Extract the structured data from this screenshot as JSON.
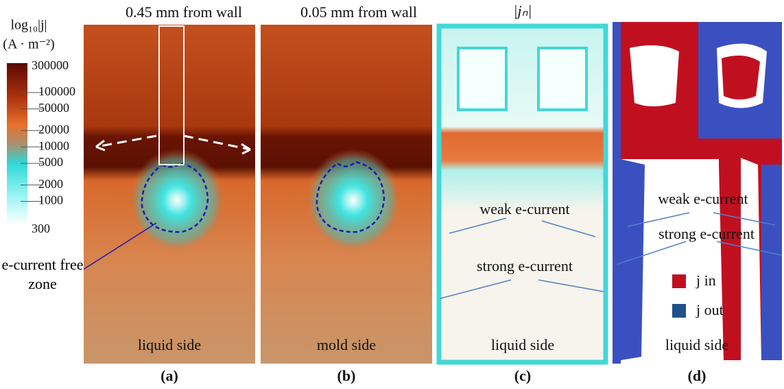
{
  "colorbar": {
    "title": "log₁₀|j|",
    "unit": "(A · m⁻²)",
    "ticks": [
      300000,
      100000,
      50000,
      20000,
      10000,
      5000,
      2000,
      1000,
      300
    ]
  },
  "panels": [
    {
      "title": "0.45 mm from wall",
      "side": "liquid side",
      "label": "(a)",
      "annotation": "e-current free zone"
    },
    {
      "title": "0.05 mm from wall",
      "side": "mold side",
      "label": "(b)"
    },
    {
      "title": "|jₙ|",
      "side": "liquid side",
      "label": "(c)",
      "weak": "weak e-current",
      "strong": "strong e-current"
    },
    {
      "side": "liquid side",
      "label": "(d)",
      "weak": "weak e-current",
      "strong": "strong e-current",
      "legend": [
        "j in",
        "j out"
      ]
    }
  ]
}
